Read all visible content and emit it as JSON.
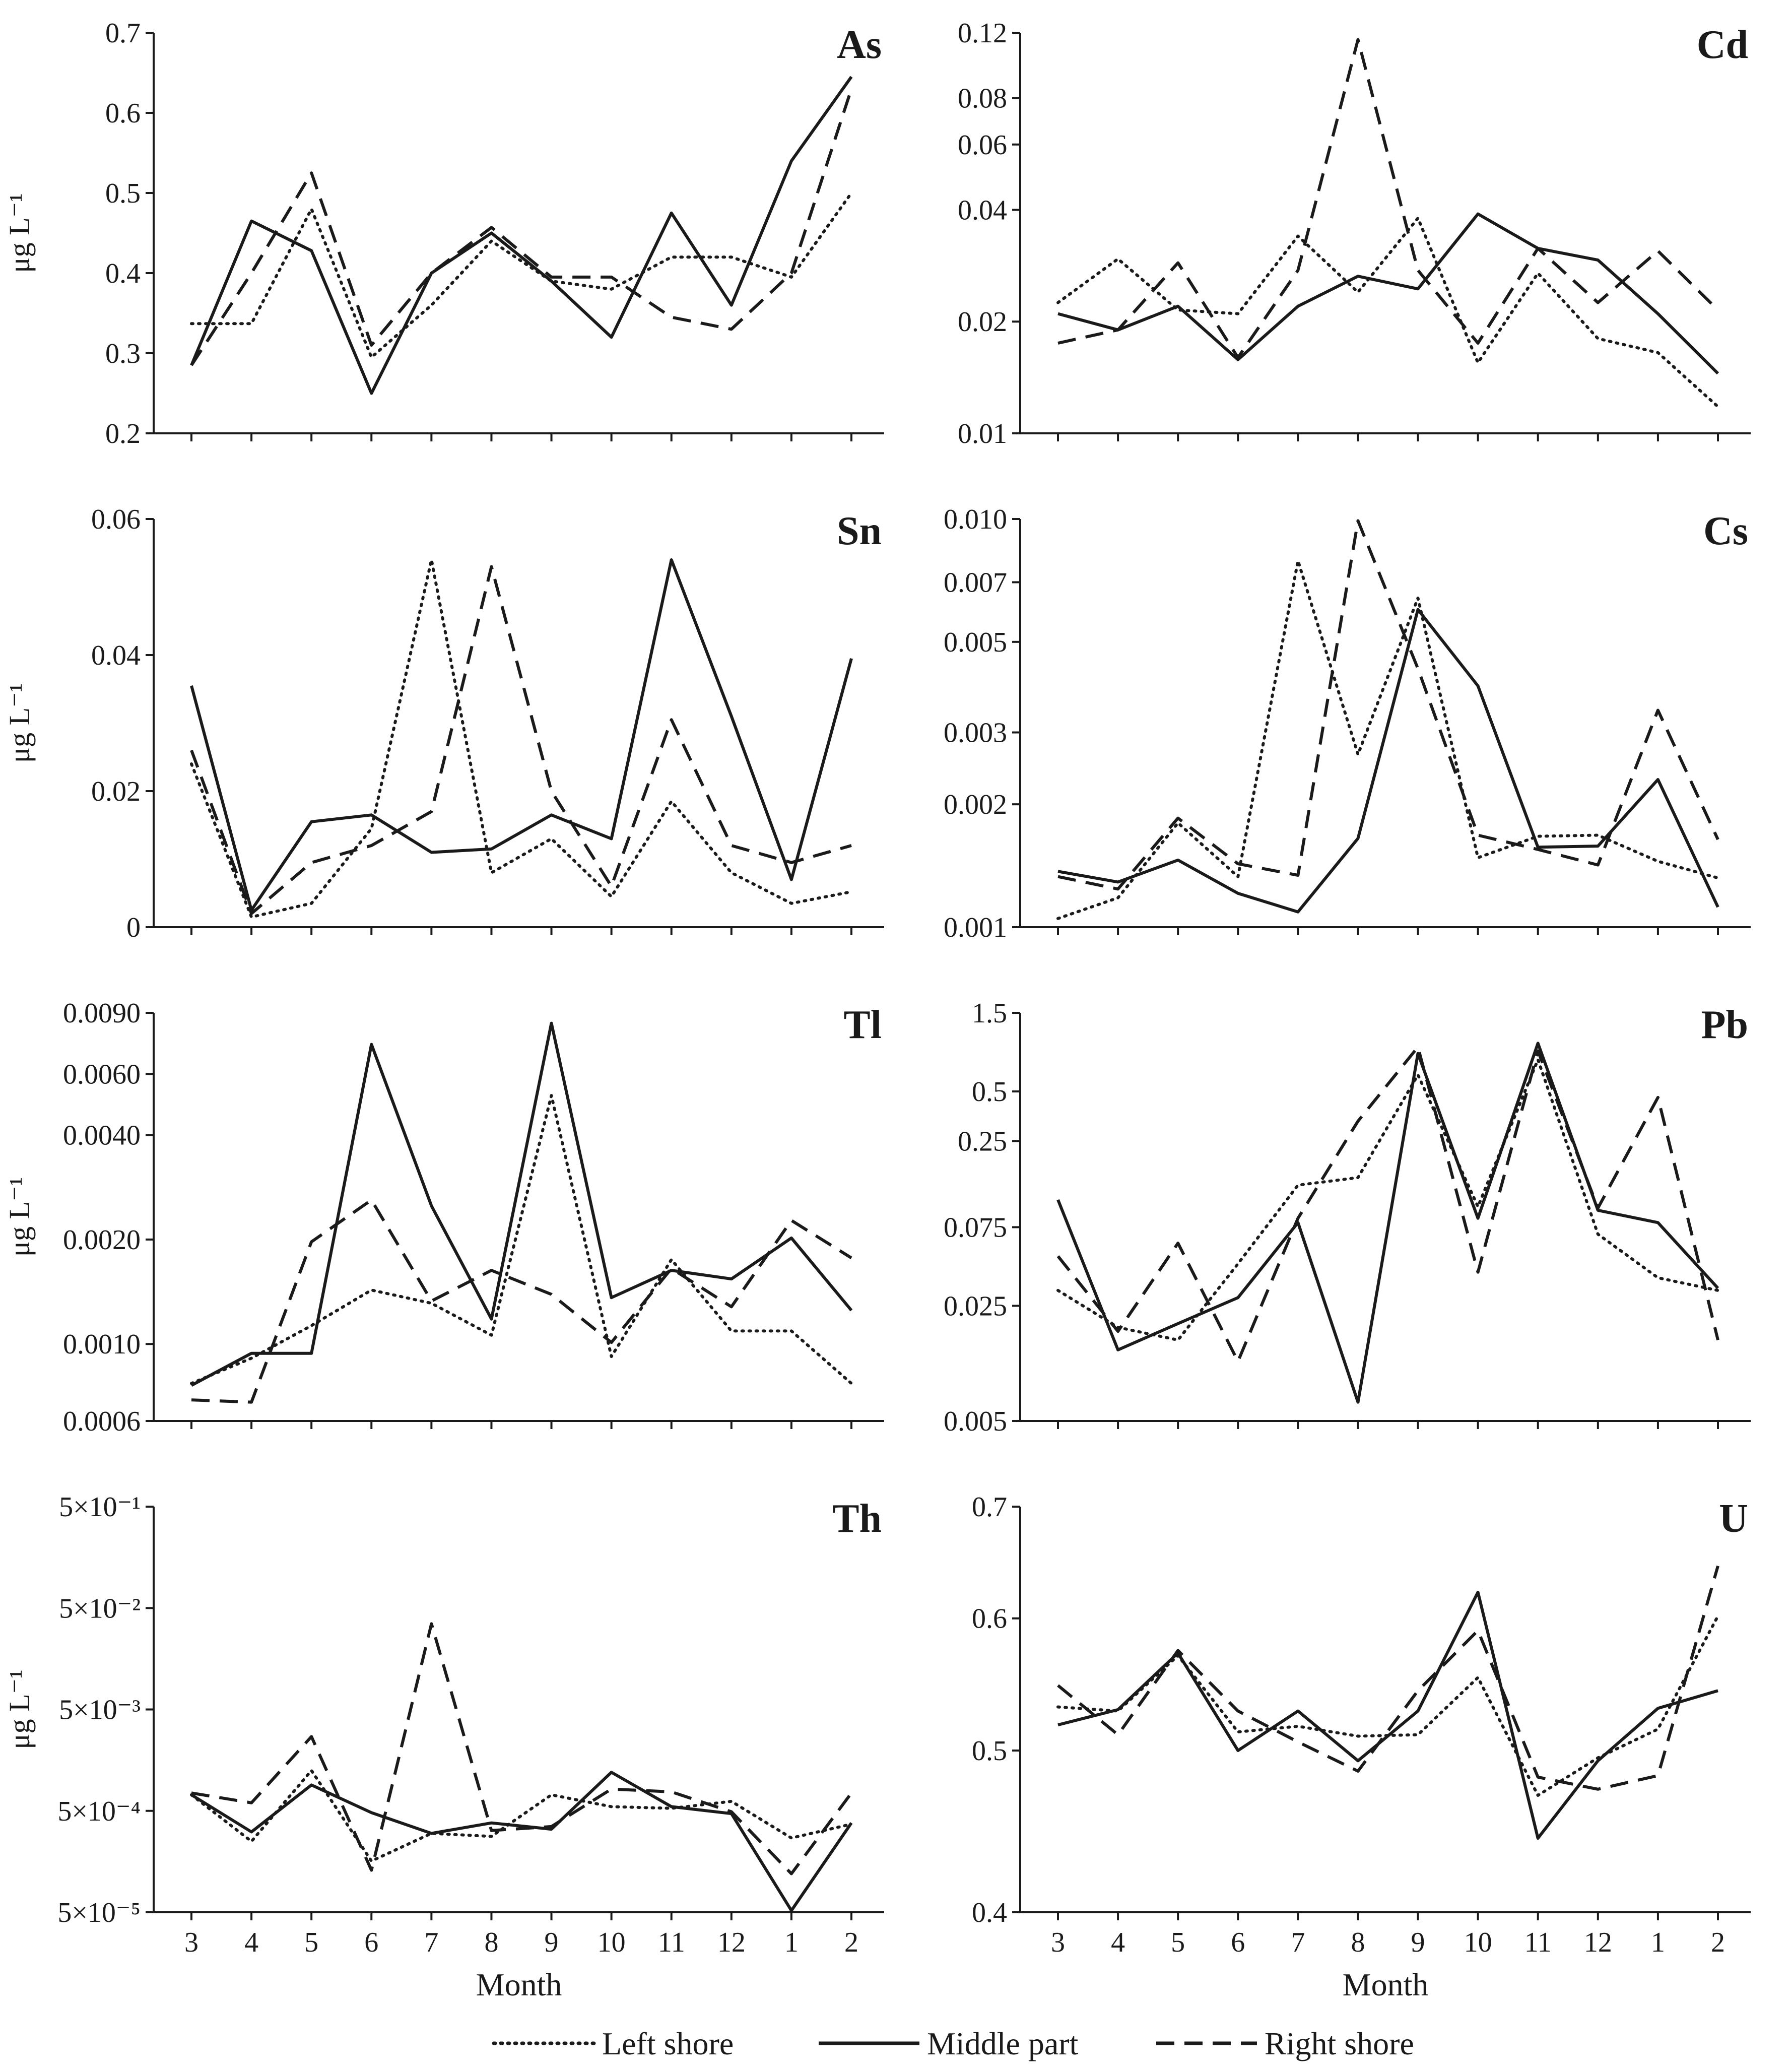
{
  "legend": [
    {
      "key": "left",
      "label": "Left shore",
      "dash": "dotted"
    },
    {
      "key": "middle",
      "label": "Middle part",
      "dash": "solid"
    },
    {
      "key": "right",
      "label": "Right shore",
      "dash": "dashed"
    }
  ],
  "chart_data": [
    {
      "type": "line",
      "title": "As",
      "ylabel": "μg L⁻¹",
      "xlabel": "",
      "scale": "linear",
      "categories": [
        "3",
        "4",
        "5",
        "6",
        "7",
        "8",
        "9",
        "10",
        "11",
        "12",
        "1",
        "2"
      ],
      "ylim": [
        0.2,
        0.7
      ],
      "yticks": [
        {
          "v": 0.2,
          "t": "0.2"
        },
        {
          "v": 0.3,
          "t": "0.3"
        },
        {
          "v": 0.4,
          "t": "0.4"
        },
        {
          "v": 0.5,
          "t": "0.5"
        },
        {
          "v": 0.6,
          "t": "0.6"
        },
        {
          "v": 0.7,
          "t": "0.7"
        }
      ],
      "series": [
        {
          "name": "Left shore",
          "values": [
            0.337,
            0.337,
            0.48,
            0.295,
            0.36,
            0.44,
            0.39,
            0.38,
            0.42,
            0.42,
            0.395,
            0.5
          ]
        },
        {
          "name": "Middle part",
          "values": [
            0.285,
            0.465,
            0.428,
            0.25,
            0.4,
            0.45,
            0.39,
            0.32,
            0.475,
            0.36,
            0.54,
            0.645
          ]
        },
        {
          "name": "Right shore",
          "values": [
            0.285,
            0.4,
            0.525,
            0.31,
            0.4,
            0.457,
            0.395,
            0.395,
            0.345,
            0.33,
            0.4,
            0.63
          ]
        }
      ]
    },
    {
      "type": "line",
      "title": "Cd",
      "ylabel": "",
      "xlabel": "",
      "scale": "log",
      "categories": [
        "3",
        "4",
        "5",
        "6",
        "7",
        "8",
        "9",
        "10",
        "11",
        "12",
        "1",
        "2"
      ],
      "ylim": [
        0.01,
        0.12
      ],
      "yticks": [
        {
          "v": 0.01,
          "t": "0.01"
        },
        {
          "v": 0.02,
          "t": "0.02"
        },
        {
          "v": 0.04,
          "t": "0.04"
        },
        {
          "v": 0.06,
          "t": "0.06"
        },
        {
          "v": 0.08,
          "t": "0.08"
        },
        {
          "v": 0.12,
          "t": "0.12"
        }
      ],
      "series": [
        {
          "name": "Left shore",
          "values": [
            0.0225,
            0.0295,
            0.0215,
            0.021,
            0.034,
            0.024,
            0.038,
            0.0155,
            0.027,
            0.018,
            0.0165,
            0.0118
          ]
        },
        {
          "name": "Middle part",
          "values": [
            0.021,
            0.019,
            0.022,
            0.0158,
            0.022,
            0.0265,
            0.0245,
            0.039,
            0.0315,
            0.0293,
            0.021,
            0.0145
          ]
        },
        {
          "name": "Right shore",
          "values": [
            0.0175,
            0.019,
            0.0288,
            0.016,
            0.0275,
            0.115,
            0.0275,
            0.0175,
            0.0315,
            0.0225,
            0.031,
            0.0215
          ]
        }
      ]
    },
    {
      "type": "line",
      "title": "Sn",
      "ylabel": "μg L⁻¹",
      "xlabel": "",
      "scale": "linear",
      "categories": [
        "3",
        "4",
        "5",
        "6",
        "7",
        "8",
        "9",
        "10",
        "11",
        "12",
        "1",
        "2"
      ],
      "ylim": [
        0,
        0.06
      ],
      "yticks": [
        {
          "v": 0,
          "t": "0"
        },
        {
          "v": 0.02,
          "t": "0.02"
        },
        {
          "v": 0.04,
          "t": "0.04"
        },
        {
          "v": 0.06,
          "t": "0.06"
        }
      ],
      "series": [
        {
          "name": "Left shore",
          "values": [
            0.024,
            0.0015,
            0.0035,
            0.0145,
            0.054,
            0.008,
            0.013,
            0.0045,
            0.0185,
            0.008,
            0.0035,
            0.0052
          ]
        },
        {
          "name": "Middle part",
          "values": [
            0.0355,
            0.0025,
            0.0155,
            0.0165,
            0.011,
            0.0115,
            0.0165,
            0.013,
            0.054,
            0.031,
            0.007,
            0.0395
          ]
        },
        {
          "name": "Right shore",
          "values": [
            0.026,
            0.002,
            0.0095,
            0.012,
            0.017,
            0.053,
            0.02,
            0.006,
            0.0305,
            0.012,
            0.0095,
            0.012
          ]
        }
      ]
    },
    {
      "type": "line",
      "title": "Cs",
      "ylabel": "",
      "xlabel": "",
      "scale": "log",
      "categories": [
        "3",
        "4",
        "5",
        "6",
        "7",
        "8",
        "9",
        "10",
        "11",
        "12",
        "1",
        "2"
      ],
      "ylim": [
        0.001,
        0.01
      ],
      "yticks": [
        {
          "v": 0.001,
          "t": "0.001"
        },
        {
          "v": 0.002,
          "t": "0.002"
        },
        {
          "v": 0.003,
          "t": "0.003"
        },
        {
          "v": 0.005,
          "t": "0.005"
        },
        {
          "v": 0.007,
          "t": "0.007"
        },
        {
          "v": 0.01,
          "t": "0.010"
        }
      ],
      "series": [
        {
          "name": "Left shore",
          "values": [
            0.00105,
            0.00118,
            0.0018,
            0.00133,
            0.0079,
            0.00265,
            0.0064,
            0.00148,
            0.00167,
            0.00168,
            0.00145,
            0.00132
          ]
        },
        {
          "name": "Middle part",
          "values": [
            0.00137,
            0.00129,
            0.00146,
            0.00121,
            0.00109,
            0.00165,
            0.006,
            0.0039,
            0.00157,
            0.00158,
            0.0023,
            0.00112
          ]
        },
        {
          "name": "Right shore",
          "values": [
            0.00133,
            0.00124,
            0.00185,
            0.00143,
            0.00134,
            0.0099,
            0.0043,
            0.00168,
            0.00155,
            0.00142,
            0.0034,
            0.00164
          ]
        }
      ]
    },
    {
      "type": "line",
      "title": "Tl",
      "ylabel": "μg L⁻¹",
      "xlabel": "",
      "scale": "log",
      "categories": [
        "3",
        "4",
        "5",
        "6",
        "7",
        "8",
        "9",
        "10",
        "11",
        "12",
        "1",
        "2"
      ],
      "ylim": [
        0.0006,
        0.009
      ],
      "yticks": [
        {
          "v": 0.0006,
          "t": "0.0006"
        },
        {
          "v": 0.001,
          "t": "0.0010"
        },
        {
          "v": 0.002,
          "t": "0.0020"
        },
        {
          "v": 0.004,
          "t": "0.0040"
        },
        {
          "v": 0.006,
          "t": "0.0060"
        },
        {
          "v": 0.009,
          "t": "0.0090"
        }
      ],
      "series": [
        {
          "name": "Left shore",
          "values": [
            0.00077,
            0.00091,
            0.00113,
            0.00143,
            0.00131,
            0.00106,
            0.0052,
            0.00092,
            0.00175,
            0.00109,
            0.00109,
            0.00077
          ]
        },
        {
          "name": "Middle part",
          "values": [
            0.00076,
            0.00094,
            0.00094,
            0.0073,
            0.0025,
            0.00118,
            0.0084,
            0.00136,
            0.00163,
            0.00154,
            0.00202,
            0.00125
          ]
        },
        {
          "name": "Right shore",
          "values": [
            0.00069,
            0.00068,
            0.00197,
            0.0026,
            0.00133,
            0.00163,
            0.00139,
            0.00101,
            0.00165,
            0.00128,
            0.00227,
            0.00177
          ]
        }
      ]
    },
    {
      "type": "line",
      "title": "Pb",
      "ylabel": "",
      "xlabel": "",
      "scale": "log",
      "categories": [
        "3",
        "4",
        "5",
        "6",
        "7",
        "8",
        "9",
        "10",
        "11",
        "12",
        "1",
        "2"
      ],
      "ylim": [
        0.005,
        1.5
      ],
      "yticks": [
        {
          "v": 0.005,
          "t": "0.005"
        },
        {
          "v": 0.025,
          "t": "0.025"
        },
        {
          "v": 0.075,
          "t": "0.075"
        },
        {
          "v": 0.25,
          "t": "0.25"
        },
        {
          "v": 0.5,
          "t": "0.5"
        },
        {
          "v": 1.5,
          "t": "1.5"
        }
      ],
      "series": [
        {
          "name": "Left shore",
          "values": [
            0.031,
            0.0185,
            0.0155,
            0.045,
            0.135,
            0.15,
            0.63,
            0.1,
            0.78,
            0.068,
            0.037,
            0.031
          ]
        },
        {
          "name": "Middle part",
          "values": [
            0.11,
            0.0135,
            0.0195,
            0.028,
            0.08,
            0.0065,
            0.85,
            0.085,
            0.98,
            0.095,
            0.08,
            0.032
          ]
        },
        {
          "name": "Right shore",
          "values": [
            0.05,
            0.0175,
            0.06,
            0.0115,
            0.085,
            0.33,
            0.93,
            0.04,
            0.88,
            0.098,
            0.46,
            0.0155
          ]
        }
      ]
    },
    {
      "type": "line",
      "title": "Th",
      "ylabel": "μg L⁻¹",
      "xlabel": "Month",
      "scale": "log",
      "categories": [
        "3",
        "4",
        "5",
        "6",
        "7",
        "8",
        "9",
        "10",
        "11",
        "12",
        "1",
        "2"
      ],
      "ylim": [
        5e-05,
        0.5
      ],
      "yticks": [
        {
          "v": 5e-05,
          "t": "5×10⁻⁵"
        },
        {
          "v": 0.0005,
          "t": "5×10⁻⁴"
        },
        {
          "v": 0.005,
          "t": "5×10⁻³"
        },
        {
          "v": 0.05,
          "t": "5×10⁻²"
        },
        {
          "v": 0.5,
          "t": "5×10⁻¹"
        }
      ],
      "series": [
        {
          "name": "Left shore",
          "values": [
            0.00072,
            0.00025,
            0.00125,
            0.00016,
            0.0003,
            0.00028,
            0.00072,
            0.00055,
            0.00053,
            0.00062,
            0.00027,
            0.00037
          ]
        },
        {
          "name": "Middle part",
          "values": [
            0.00072,
            0.00031,
            0.0009,
            0.00048,
            0.0003,
            0.00038,
            0.00033,
            0.0012,
            0.00055,
            0.00047,
            5.2e-05,
            0.00038
          ]
        },
        {
          "name": "Right shore",
          "values": [
            0.00075,
            0.0006,
            0.0027,
            0.00013,
            0.035,
            0.00032,
            0.00035,
            0.00082,
            0.00077,
            0.00049,
            0.00012,
            0.00075
          ]
        }
      ]
    },
    {
      "type": "line",
      "title": "U",
      "ylabel": "",
      "xlabel": "Month",
      "scale": "log",
      "categories": [
        "3",
        "4",
        "5",
        "6",
        "7",
        "8",
        "9",
        "10",
        "11",
        "12",
        "1",
        "2"
      ],
      "ylim": [
        0.4,
        0.7
      ],
      "yticks": [
        {
          "v": 0.4,
          "t": "0.4"
        },
        {
          "v": 0.5,
          "t": "0.5"
        },
        {
          "v": 0.6,
          "t": "0.6"
        },
        {
          "v": 0.7,
          "t": "0.7"
        }
      ],
      "series": [
        {
          "name": "Left shore",
          "values": [
            0.531,
            0.528,
            0.57,
            0.513,
            0.517,
            0.51,
            0.511,
            0.553,
            0.47,
            0.495,
            0.515,
            0.602
          ]
        },
        {
          "name": "Middle part",
          "values": [
            0.518,
            0.529,
            0.572,
            0.5,
            0.528,
            0.493,
            0.528,
            0.622,
            0.443,
            0.493,
            0.53,
            0.543
          ]
        },
        {
          "name": "Right shore",
          "values": [
            0.547,
            0.511,
            0.574,
            0.528,
            0.506,
            0.486,
            0.543,
            0.59,
            0.482,
            0.474,
            0.483,
            0.645
          ]
        }
      ]
    }
  ]
}
